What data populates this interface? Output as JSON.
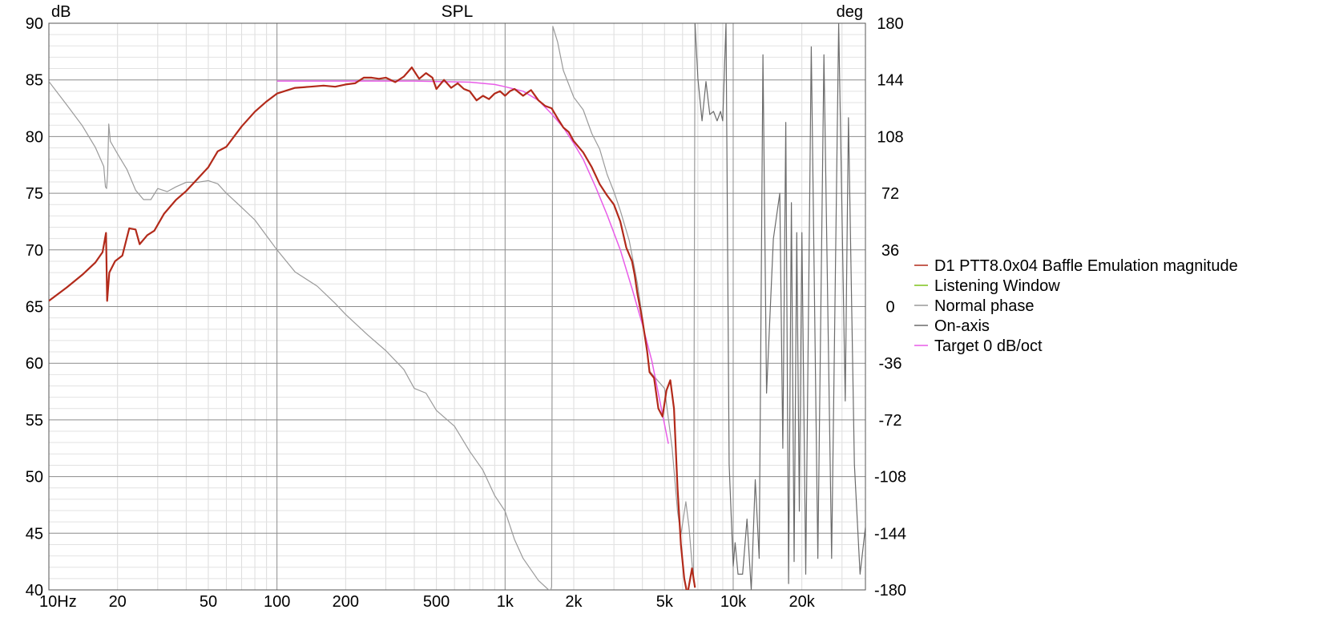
{
  "chart_data": {
    "type": "line",
    "title": "SPL",
    "ylabel_left": "dB",
    "ylabel_right": "deg",
    "x_scale": "log",
    "xlim": [
      10,
      38000
    ],
    "ylim_left": [
      40,
      90
    ],
    "ylim_right": [
      -180,
      180
    ],
    "grid": true,
    "x_ticks": [
      {
        "value": 10,
        "label": "10Hz"
      },
      {
        "value": 20,
        "label": "20"
      },
      {
        "value": 50,
        "label": "50"
      },
      {
        "value": 100,
        "label": "100"
      },
      {
        "value": 200,
        "label": "200"
      },
      {
        "value": 500,
        "label": "500"
      },
      {
        "value": 1000,
        "label": "1k"
      },
      {
        "value": 2000,
        "label": "2k"
      },
      {
        "value": 5000,
        "label": "5k"
      },
      {
        "value": 10000,
        "label": "10k"
      },
      {
        "value": 20000,
        "label": "20k"
      }
    ],
    "y_ticks_left": [
      {
        "value": 90,
        "label": "90"
      },
      {
        "value": 85,
        "label": "85"
      },
      {
        "value": 80,
        "label": "80"
      },
      {
        "value": 75,
        "label": "75"
      },
      {
        "value": 70,
        "label": "70"
      },
      {
        "value": 65,
        "label": "65"
      },
      {
        "value": 60,
        "label": "60"
      },
      {
        "value": 55,
        "label": "55"
      },
      {
        "value": 50,
        "label": "50"
      },
      {
        "value": 45,
        "label": "45"
      },
      {
        "value": 40,
        "label": "40"
      }
    ],
    "y_ticks_right": [
      {
        "value": 180,
        "label": "180"
      },
      {
        "value": 144,
        "label": "144"
      },
      {
        "value": 108,
        "label": "108"
      },
      {
        "value": 72,
        "label": "72"
      },
      {
        "value": 36,
        "label": "36"
      },
      {
        "value": 0,
        "label": "0"
      },
      {
        "value": -36,
        "label": "-36"
      },
      {
        "value": -72,
        "label": "-72"
      },
      {
        "value": -108,
        "label": "-108"
      },
      {
        "value": -144,
        "label": "-144"
      },
      {
        "value": -180,
        "label": "-180"
      }
    ],
    "legend_position": "right",
    "series": [
      {
        "name": "D1 PTT8.0x04 Baffle Emulation magnitude",
        "color": "#b22a1a",
        "axis": "left",
        "width": 2.2,
        "points": [
          [
            10,
            65.5
          ],
          [
            12,
            66.7
          ],
          [
            14,
            67.8
          ],
          [
            16,
            68.9
          ],
          [
            17.2,
            69.8
          ],
          [
            17.8,
            71.5
          ],
          [
            18.0,
            65.5
          ],
          [
            18.4,
            68
          ],
          [
            19.5,
            69
          ],
          [
            21,
            69.5
          ],
          [
            22.5,
            71.9
          ],
          [
            24,
            71.8
          ],
          [
            25,
            70.5
          ],
          [
            27,
            71.3
          ],
          [
            29,
            71.7
          ],
          [
            32,
            73.2
          ],
          [
            36,
            74.4
          ],
          [
            40,
            75.2
          ],
          [
            45,
            76.3
          ],
          [
            50,
            77.3
          ],
          [
            55,
            78.7
          ],
          [
            60,
            79.1
          ],
          [
            70,
            80.9
          ],
          [
            80,
            82.2
          ],
          [
            90,
            83.1
          ],
          [
            100,
            83.8
          ],
          [
            120,
            84.3
          ],
          [
            140,
            84.4
          ],
          [
            160,
            84.5
          ],
          [
            180,
            84.4
          ],
          [
            200,
            84.6
          ],
          [
            220,
            84.7
          ],
          [
            240,
            85.2
          ],
          [
            260,
            85.2
          ],
          [
            280,
            85.1
          ],
          [
            300,
            85.2
          ],
          [
            330,
            84.8
          ],
          [
            360,
            85.3
          ],
          [
            390,
            86.1
          ],
          [
            420,
            85.1
          ],
          [
            450,
            85.6
          ],
          [
            480,
            85.2
          ],
          [
            500,
            84.2
          ],
          [
            540,
            85.0
          ],
          [
            580,
            84.3
          ],
          [
            620,
            84.7
          ],
          [
            660,
            84.2
          ],
          [
            700,
            84.0
          ],
          [
            750,
            83.2
          ],
          [
            800,
            83.6
          ],
          [
            850,
            83.3
          ],
          [
            900,
            83.8
          ],
          [
            950,
            84.0
          ],
          [
            1000,
            83.6
          ],
          [
            1050,
            84.0
          ],
          [
            1100,
            84.2
          ],
          [
            1200,
            83.6
          ],
          [
            1300,
            84.1
          ],
          [
            1400,
            83.2
          ],
          [
            1500,
            82.7
          ],
          [
            1600,
            82.5
          ],
          [
            1700,
            81.6
          ],
          [
            1800,
            80.8
          ],
          [
            1900,
            80.4
          ],
          [
            2000,
            79.6
          ],
          [
            2200,
            78.6
          ],
          [
            2400,
            77.3
          ],
          [
            2600,
            75.8
          ],
          [
            2800,
            74.8
          ],
          [
            3000,
            74.0
          ],
          [
            3200,
            72.5
          ],
          [
            3400,
            70.2
          ],
          [
            3600,
            69.0
          ],
          [
            3700,
            67.8
          ],
          [
            3800,
            66.2
          ],
          [
            4000,
            63.8
          ],
          [
            4200,
            61.0
          ],
          [
            4300,
            59.2
          ],
          [
            4500,
            58.7
          ],
          [
            4700,
            56.0
          ],
          [
            4900,
            55.3
          ],
          [
            5100,
            57.6
          ],
          [
            5300,
            58.5
          ],
          [
            5500,
            56.0
          ],
          [
            5700,
            49.0
          ],
          [
            5900,
            44.0
          ],
          [
            6100,
            41.0
          ],
          [
            6300,
            39.6
          ],
          [
            6600,
            41.9
          ],
          [
            6800,
            40.2
          ]
        ]
      },
      {
        "name": "Listening Window",
        "color": "#7fc31c",
        "axis": "left",
        "width": 1.5,
        "points": []
      },
      {
        "name": "Normal phase",
        "color": "#9a9a9a",
        "axis": "right",
        "width": 1.2,
        "points": [
          [
            10,
            143
          ],
          [
            12,
            128
          ],
          [
            14,
            115
          ],
          [
            16,
            101
          ],
          [
            17.4,
            89
          ],
          [
            17.7,
            76
          ],
          [
            17.9,
            75
          ],
          [
            18.1,
            84
          ],
          [
            18.3,
            116
          ],
          [
            18.6,
            105
          ],
          [
            20,
            97
          ],
          [
            22,
            87
          ],
          [
            24,
            74
          ],
          [
            26,
            68
          ],
          [
            28,
            68
          ],
          [
            30,
            75
          ],
          [
            33,
            73
          ],
          [
            36,
            76
          ],
          [
            40,
            79
          ],
          [
            45,
            79
          ],
          [
            50,
            80
          ],
          [
            55,
            78
          ],
          [
            60,
            72
          ],
          [
            70,
            63
          ],
          [
            80,
            55
          ],
          [
            90,
            45
          ],
          [
            100,
            36
          ],
          [
            120,
            22
          ],
          [
            150,
            13
          ],
          [
            180,
            2
          ],
          [
            200,
            -5
          ],
          [
            250,
            -18
          ],
          [
            300,
            -28
          ],
          [
            360,
            -40
          ],
          [
            400,
            -52
          ],
          [
            450,
            -55
          ],
          [
            500,
            -66
          ],
          [
            600,
            -76
          ],
          [
            700,
            -92
          ],
          [
            800,
            -104
          ],
          [
            900,
            -120
          ],
          [
            1000,
            -130
          ],
          [
            1100,
            -148
          ],
          [
            1200,
            -160
          ],
          [
            1400,
            -174
          ],
          [
            1580,
            -181
          ],
          [
            1600,
            -178
          ],
          [
            1620,
            178
          ],
          [
            1700,
            168
          ],
          [
            1800,
            150
          ],
          [
            2000,
            133
          ],
          [
            2200,
            125
          ],
          [
            2400,
            110
          ],
          [
            2600,
            100
          ],
          [
            2800,
            84
          ],
          [
            3000,
            73
          ],
          [
            3200,
            61
          ],
          [
            3500,
            42
          ],
          [
            3800,
            15
          ],
          [
            4000,
            -7
          ],
          [
            4300,
            -41
          ],
          [
            4600,
            -46
          ],
          [
            5000,
            -52
          ],
          [
            5400,
            -90
          ],
          [
            5700,
            -130
          ],
          [
            5900,
            -145
          ],
          [
            6200,
            -124
          ],
          [
            6400,
            -140
          ],
          [
            6700,
            -175
          ],
          [
            6800,
            180
          ]
        ]
      },
      {
        "name": "On-axis",
        "color": "#6b6b6b",
        "axis": "right",
        "width": 1.2,
        "points": [
          [
            6800,
            180
          ],
          [
            7000,
            145
          ],
          [
            7300,
            118
          ],
          [
            7600,
            143
          ],
          [
            7900,
            122
          ],
          [
            8200,
            124
          ],
          [
            8500,
            118
          ],
          [
            8800,
            124
          ],
          [
            9000,
            118
          ],
          [
            9300,
            180
          ],
          [
            9600,
            -100
          ],
          [
            10000,
            -165
          ],
          [
            10200,
            -150
          ],
          [
            10500,
            -170
          ],
          [
            11000,
            -170
          ],
          [
            11500,
            -135
          ],
          [
            12000,
            -180
          ],
          [
            12500,
            -110
          ],
          [
            13000,
            -160
          ],
          [
            13500,
            160
          ],
          [
            14000,
            -55
          ],
          [
            15000,
            43
          ],
          [
            16000,
            72
          ],
          [
            16500,
            -90
          ],
          [
            17000,
            117
          ],
          [
            17500,
            -176
          ],
          [
            18000,
            66
          ],
          [
            18500,
            -162
          ],
          [
            19000,
            47
          ],
          [
            19500,
            -130
          ],
          [
            20000,
            47
          ],
          [
            20800,
            -170
          ],
          [
            22000,
            165
          ],
          [
            23500,
            -160
          ],
          [
            25000,
            160
          ],
          [
            27000,
            -160
          ],
          [
            29000,
            180
          ],
          [
            31000,
            -60
          ],
          [
            32000,
            120
          ],
          [
            34000,
            -100
          ],
          [
            36000,
            -170
          ],
          [
            38000,
            -140
          ]
        ]
      },
      {
        "name": "Target 0 dB/oct",
        "color": "#e85ce8",
        "axis": "left",
        "width": 1.5,
        "points": [
          [
            100,
            84.9
          ],
          [
            200,
            84.9
          ],
          [
            400,
            84.9
          ],
          [
            700,
            84.8
          ],
          [
            900,
            84.6
          ],
          [
            1000,
            84.4
          ],
          [
            1200,
            84.0
          ],
          [
            1400,
            83.2
          ],
          [
            1600,
            82.0
          ],
          [
            1800,
            80.8
          ],
          [
            2000,
            79.4
          ],
          [
            2200,
            78.0
          ],
          [
            2500,
            75.5
          ],
          [
            2800,
            73.1
          ],
          [
            3200,
            70.0
          ],
          [
            3600,
            66.6
          ],
          [
            4000,
            63.4
          ],
          [
            4400,
            60.2
          ],
          [
            4800,
            56.4
          ],
          [
            5200,
            52.9
          ]
        ]
      }
    ]
  }
}
